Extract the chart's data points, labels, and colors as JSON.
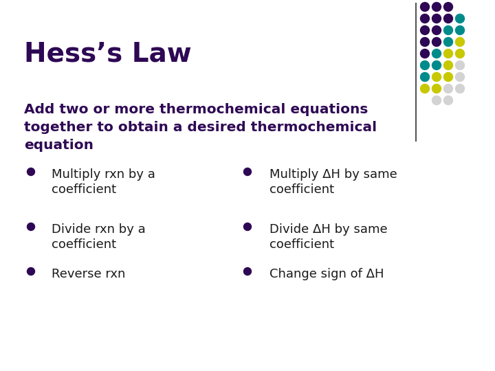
{
  "background_color": "#ffffff",
  "title": "Hess’s Law",
  "title_color": "#2e0854",
  "title_fontsize": 28,
  "subtitle_color": "#2e0854",
  "subtitle_fontsize": 14.5,
  "bullet_color": "#1a1a1a",
  "bullet_dot_color": "#2e0854",
  "bullet_fontsize": 13,
  "left_bullets": [
    [
      "Multiply rxn by a",
      "coefficient"
    ],
    [
      "Divide rxn by a",
      "coefficient"
    ],
    [
      "Reverse rxn"
    ]
  ],
  "right_bullets": [
    [
      "Multiply ΔH by same",
      "coefficient"
    ],
    [
      "Divide ΔH by same",
      "coefficient"
    ],
    [
      "Change sign of ΔH"
    ]
  ],
  "dot_grid_colors": [
    [
      "#2e0854",
      "#2e0854",
      "#2e0854",
      "none"
    ],
    [
      "#2e0854",
      "#2e0854",
      "#2e0854",
      "#008b8b"
    ],
    [
      "#2e0854",
      "#2e0854",
      "#008b8b",
      "#008b8b"
    ],
    [
      "#2e0854",
      "#2e0854",
      "#008b8b",
      "#c8c800"
    ],
    [
      "#2e0854",
      "#008b8b",
      "#c8c800",
      "#c8c800"
    ],
    [
      "#008b8b",
      "#008b8b",
      "#c8c800",
      "#d3d3d3"
    ],
    [
      "#008b8b",
      "#c8c800",
      "#c8c800",
      "#d3d3d3"
    ],
    [
      "#c8c800",
      "#c8c800",
      "#d3d3d3",
      "#d3d3d3"
    ],
    [
      "none",
      "#d3d3d3",
      "#d3d3d3",
      "none"
    ]
  ],
  "separator_line_color": "#555555"
}
